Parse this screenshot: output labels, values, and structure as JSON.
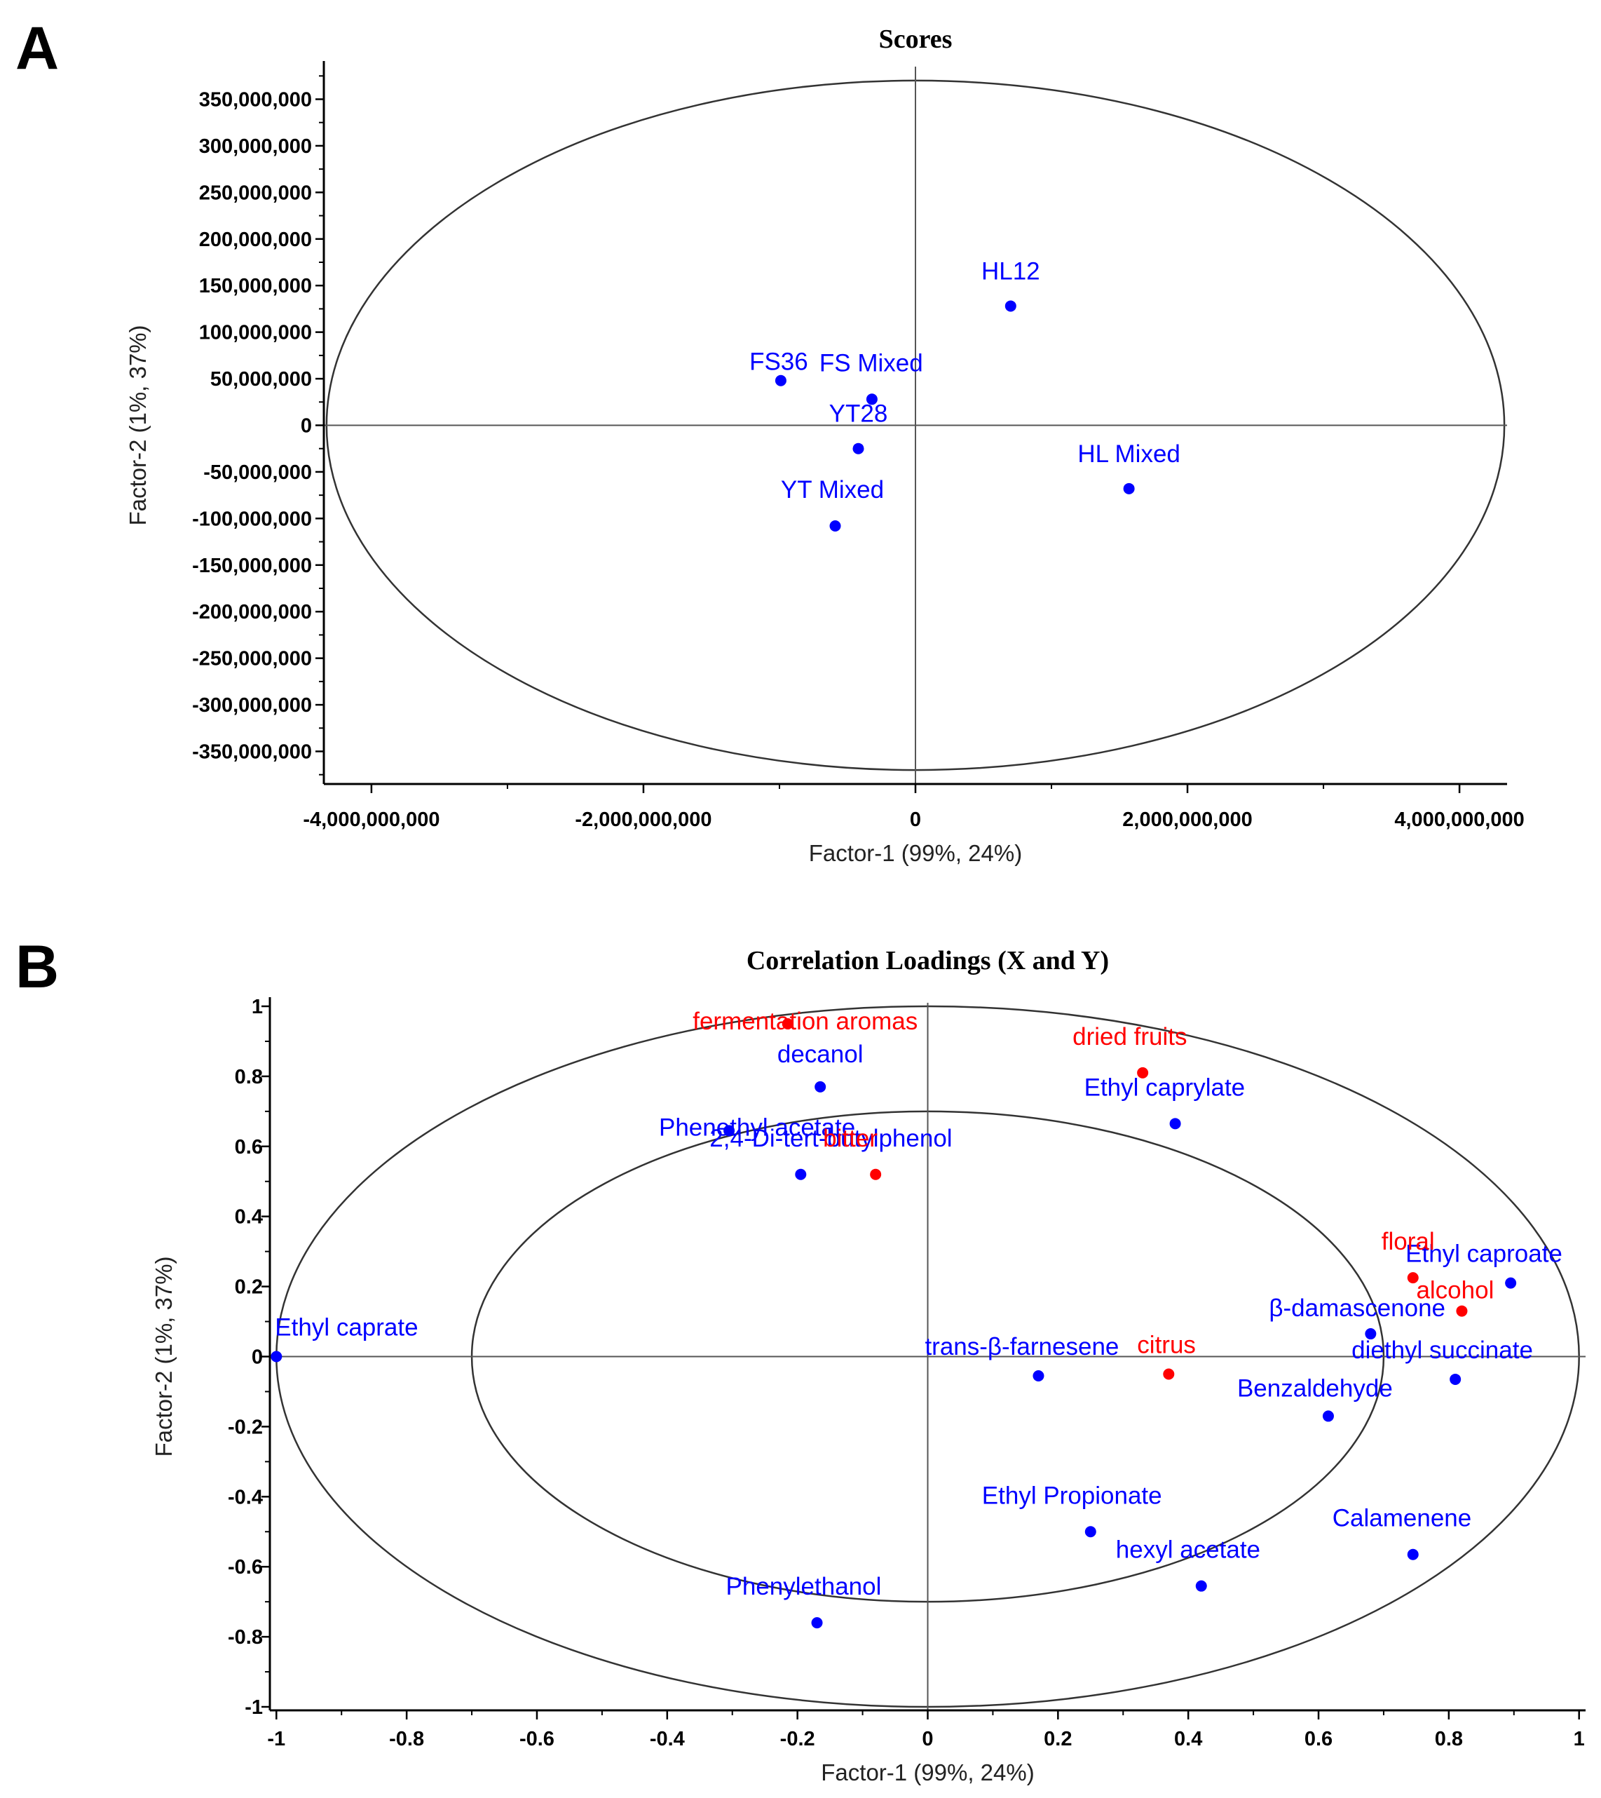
{
  "panels": {
    "a": "A",
    "b": "B"
  },
  "colors": {
    "x_series": "#0000ff",
    "y_series": "#ff0000",
    "axis": "#000000",
    "ellipse": "#333333"
  },
  "chart_data": [
    {
      "type": "scatter",
      "title": "Scores",
      "xlabel": "Factor-1 (99%, 24%)",
      "ylabel": "Factor-2 (1%, 37%)",
      "xlim": [
        -4350000000,
        4350000000
      ],
      "ylim": [
        -385000000,
        385000000
      ],
      "x_ticks": [
        {
          "v": -4000000000,
          "label": "-4,000,000,000"
        },
        {
          "v": -2000000000,
          "label": "-2,000,000,000"
        },
        {
          "v": 0,
          "label": "0"
        },
        {
          "v": 2000000000,
          "label": "2,000,000,000"
        },
        {
          "v": 4000000000,
          "label": "4,000,000,000"
        }
      ],
      "y_ticks": [
        {
          "v": 350000000,
          "label": "350,000,000"
        },
        {
          "v": 300000000,
          "label": "300,000,000"
        },
        {
          "v": 250000000,
          "label": "250,000,000"
        },
        {
          "v": 200000000,
          "label": "200,000,000"
        },
        {
          "v": 150000000,
          "label": "150,000,000"
        },
        {
          "v": 100000000,
          "label": "100,000,000"
        },
        {
          "v": 50000000,
          "label": "50,000,000"
        },
        {
          "v": 0,
          "label": "0"
        },
        {
          "v": -50000000,
          "label": "-50,000,000"
        },
        {
          "v": -100000000,
          "label": "-100,000,000"
        },
        {
          "v": -150000000,
          "label": "-150,000,000"
        },
        {
          "v": -200000000,
          "label": "-200,000,000"
        },
        {
          "v": -250000000,
          "label": "-250,000,000"
        },
        {
          "v": -300000000,
          "label": "-300,000,000"
        },
        {
          "v": -350000000,
          "label": "-350,000,000"
        }
      ],
      "ellipses": [
        {
          "rx": 4330000000,
          "ry": 370000000
        }
      ],
      "series": [
        {
          "color": "#0000ff",
          "points": [
            {
              "label": "HL12",
              "x": 700000000,
              "y": 128000000
            },
            {
              "label": "FS36",
              "x": -990000000,
              "y": 48000000
            },
            {
              "label": "FS Mixed",
              "x": -320000000,
              "y": 28000000
            },
            {
              "label": "YT28",
              "x": -420000000,
              "y": -25000000
            },
            {
              "label": "HL Mixed",
              "x": 1570000000,
              "y": -68000000
            },
            {
              "label": "YT Mixed",
              "x": -590000000,
              "y": -108000000
            }
          ]
        }
      ]
    },
    {
      "type": "scatter",
      "title": "Correlation Loadings (X and Y)",
      "xlabel": "Factor-1 (99%, 24%)",
      "ylabel": "Factor-2 (1%, 37%)",
      "xlim": [
        -1.01,
        1.01
      ],
      "ylim": [
        -1.01,
        1.01
      ],
      "x_ticks": [
        {
          "v": -1,
          "label": "-1"
        },
        {
          "v": -0.8,
          "label": "-0.8"
        },
        {
          "v": -0.6,
          "label": "-0.6"
        },
        {
          "v": -0.4,
          "label": "-0.4"
        },
        {
          "v": -0.2,
          "label": "-0.2"
        },
        {
          "v": 0,
          "label": "0"
        },
        {
          "v": 0.2,
          "label": "0.2"
        },
        {
          "v": 0.4,
          "label": "0.4"
        },
        {
          "v": 0.6,
          "label": "0.6"
        },
        {
          "v": 0.8,
          "label": "0.8"
        },
        {
          "v": 1,
          "label": "1"
        }
      ],
      "y_ticks": [
        {
          "v": 1,
          "label": "1"
        },
        {
          "v": 0.8,
          "label": "0.8"
        },
        {
          "v": 0.6,
          "label": "0.6"
        },
        {
          "v": 0.4,
          "label": "0.4"
        },
        {
          "v": 0.2,
          "label": "0.2"
        },
        {
          "v": 0,
          "label": "0"
        },
        {
          "v": -0.2,
          "label": "-0.2"
        },
        {
          "v": -0.4,
          "label": "-0.4"
        },
        {
          "v": -0.6,
          "label": "-0.6"
        },
        {
          "v": -0.8,
          "label": "-0.8"
        },
        {
          "v": -1,
          "label": "-1"
        }
      ],
      "ellipses": [
        {
          "rx": 1.0,
          "ry": 1.0
        },
        {
          "rx": 0.7,
          "ry": 0.7
        }
      ],
      "series": [
        {
          "color": "#0000ff",
          "points": [
            {
              "label": "decanol",
              "x": -0.165,
              "y": 0.77
            },
            {
              "label": "Phenethyl acetate",
              "x": -0.305,
              "y": 0.645
            },
            {
              "label": "2,4-Di-tert-butylphenol",
              "x": -0.195,
              "y": 0.52
            },
            {
              "label": "Ethyl caprylate",
              "x": 0.38,
              "y": 0.665
            },
            {
              "label": "Ethyl caproate",
              "x": 0.895,
              "y": 0.21
            },
            {
              "label": "β-damascenone",
              "x": 0.68,
              "y": 0.065
            },
            {
              "label": "diethyl succinate",
              "x": 0.81,
              "y": -0.065
            },
            {
              "label": "Ethyl caprate",
              "x": -1.0,
              "y": 0.0
            },
            {
              "label": "trans-β-farnesene",
              "x": 0.17,
              "y": -0.055
            },
            {
              "label": "Benzaldehyde",
              "x": 0.615,
              "y": -0.17
            },
            {
              "label": "Ethyl Propionate",
              "x": 0.25,
              "y": -0.5
            },
            {
              "label": "Calamenene",
              "x": 0.745,
              "y": -0.565
            },
            {
              "label": "hexyl acetate",
              "x": 0.42,
              "y": -0.655
            },
            {
              "label": "Phenylethanol",
              "x": -0.17,
              "y": -0.76
            }
          ]
        },
        {
          "color": "#ff0000",
          "points": [
            {
              "label": "fermentation aromas",
              "x": -0.215,
              "y": 0.95
            },
            {
              "label": "dried fruits",
              "x": 0.33,
              "y": 0.81
            },
            {
              "label": "bitter",
              "x": -0.08,
              "y": 0.52
            },
            {
              "label": "floral",
              "x": 0.745,
              "y": 0.225
            },
            {
              "label": "alcohol",
              "x": 0.82,
              "y": 0.13
            },
            {
              "label": "citrus",
              "x": 0.37,
              "y": -0.05
            }
          ]
        }
      ]
    }
  ]
}
